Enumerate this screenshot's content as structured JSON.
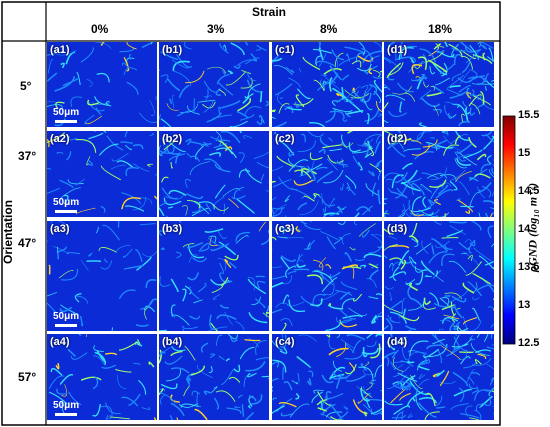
{
  "column_header": "Strain",
  "row_header": "Orientation",
  "columns": [
    "0%",
    "3%",
    "8%",
    "18%"
  ],
  "rows": [
    "5°",
    "37°",
    "47°",
    "57°"
  ],
  "panels": [
    [
      "(a1)",
      "(b1)",
      "(c1)",
      "(d1)"
    ],
    [
      "(a2)",
      "(b2)",
      "(c2)",
      "(d2)"
    ],
    [
      "(a3)",
      "(b3)",
      "(c3)",
      "(d3)"
    ],
    [
      "(a4)",
      "(b4)",
      "(c4)",
      "(d4)"
    ]
  ],
  "scale_bar_label": "50μm",
  "colorbar": {
    "label": "ρGND (log₁₀ m⁻²)",
    "ticks": [
      "15.5",
      "15",
      "14.5",
      "14",
      "13.5",
      "13",
      "12.5"
    ],
    "range": [
      12.5,
      15.5
    ],
    "colors": [
      "#00007f",
      "#0000ff",
      "#007fff",
      "#00ffff",
      "#7fff7f",
      "#ffff00",
      "#ff7f00",
      "#ff0000",
      "#7f0000"
    ]
  }
}
